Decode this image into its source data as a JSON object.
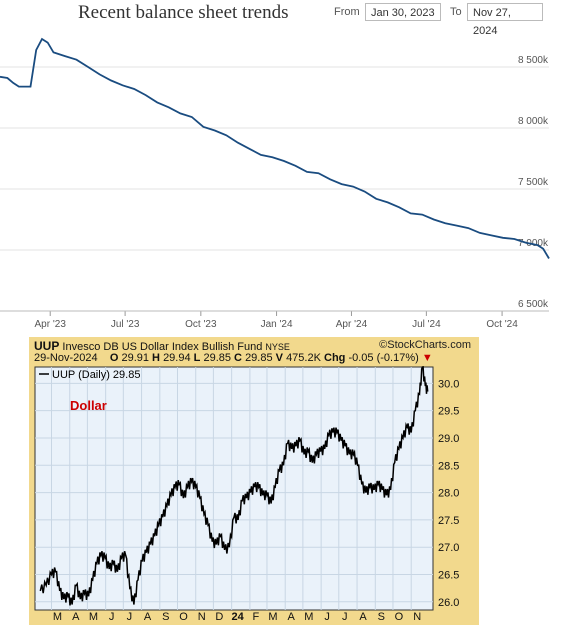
{
  "top_panel": {
    "title": "Recent balance sheet trends",
    "from_label": "From",
    "from_date": "Jan 30, 2023",
    "to_label": "To",
    "to_date": "Nov 27, 2024"
  },
  "bottom_panel": {
    "symbol": "UUP",
    "name": "Invesco DB US Dollar Index Bullish Fund",
    "exchange": "NYSE",
    "source": "©StockCharts.com",
    "date": "29-Nov-2024",
    "open_label": "O",
    "open": "29.91",
    "high_label": "H",
    "high": "29.94",
    "low_label": "L",
    "low": "29.85",
    "close_label": "C",
    "close": "29.85",
    "volume_label": "V",
    "volume": "475.2K",
    "chg_label": "Chg",
    "chg": "-0.05 (-0.17%)",
    "legend": "UUP (Daily) 29.85",
    "annotation": "Dollar"
  },
  "colors": {
    "balance_line": "#1a4c80",
    "uup_line": "#000000",
    "panel_frame": "#f2d98d",
    "plot_bg": "#eaf2fa",
    "annotation": "#cc0000"
  },
  "chart_data": [
    {
      "type": "line",
      "title": "Recent balance sheet trends",
      "xlabel": "",
      "ylabel": "",
      "x_ticks": [
        "Apr '23",
        "Jul '23",
        "Oct '23",
        "Jan '24",
        "Apr '24",
        "Jul '24",
        "Oct '24"
      ],
      "y_ticks": [
        "6 500k",
        "7 000k",
        "7 500k",
        "8 000k",
        "8 500k"
      ],
      "ylim": [
        6500000,
        8820000
      ],
      "xlim": [
        "2023-01-30",
        "2024-11-27"
      ],
      "grid": true,
      "series": [
        {
          "x": [
            "2023-01-30",
            "2023-02-08",
            "2023-02-15",
            "2023-02-22",
            "2023-03-01",
            "2023-03-08",
            "2023-03-15",
            "2023-03-22",
            "2023-03-29",
            "2023-04-05",
            "2023-04-19",
            "2023-05-03",
            "2023-05-17",
            "2023-05-31",
            "2023-06-14",
            "2023-06-28",
            "2023-07-12",
            "2023-07-26",
            "2023-08-09",
            "2023-08-23",
            "2023-09-06",
            "2023-09-20",
            "2023-10-04",
            "2023-10-18",
            "2023-11-01",
            "2023-11-15",
            "2023-11-29",
            "2023-12-13",
            "2023-12-27",
            "2024-01-10",
            "2024-01-24",
            "2024-02-07",
            "2024-02-21",
            "2024-03-06",
            "2024-03-20",
            "2024-04-03",
            "2024-04-17",
            "2024-05-01",
            "2024-05-15",
            "2024-05-29",
            "2024-06-12",
            "2024-06-26",
            "2024-07-10",
            "2024-07-24",
            "2024-08-07",
            "2024-08-21",
            "2024-09-04",
            "2024-09-18",
            "2024-10-02",
            "2024-10-16",
            "2024-10-30",
            "2024-11-13",
            "2024-11-20",
            "2024-11-27"
          ],
          "values": [
            8420000,
            8410000,
            8370000,
            8340000,
            8340000,
            8340000,
            8640000,
            8730000,
            8700000,
            8620000,
            8590000,
            8560000,
            8500000,
            8440000,
            8390000,
            8350000,
            8320000,
            8270000,
            8210000,
            8170000,
            8120000,
            8090000,
            8010000,
            7980000,
            7940000,
            7880000,
            7830000,
            7780000,
            7760000,
            7730000,
            7690000,
            7640000,
            7630000,
            7580000,
            7540000,
            7520000,
            7480000,
            7420000,
            7390000,
            7350000,
            7300000,
            7290000,
            7250000,
            7220000,
            7200000,
            7180000,
            7140000,
            7120000,
            7100000,
            7090000,
            7060000,
            7040000,
            7010000,
            6930000
          ]
        }
      ]
    },
    {
      "type": "line",
      "title": "Dollar",
      "xlabel": "",
      "ylabel": "",
      "x_ticks": [
        "M",
        "A",
        "M",
        "J",
        "J",
        "A",
        "S",
        "O",
        "N",
        "D",
        "24",
        "F",
        "M",
        "A",
        "M",
        "J",
        "J",
        "A",
        "S",
        "O",
        "N"
      ],
      "y_ticks": [
        "26.0",
        "26.5",
        "27.0",
        "27.5",
        "28.0",
        "28.5",
        "29.0",
        "29.5",
        "30.0"
      ],
      "ylim": [
        25.85,
        30.3
      ],
      "grid": true,
      "series": [
        {
          "name": "UUP (Daily)",
          "x": [
            "2023-02-10",
            "2023-02-20",
            "2023-03-01",
            "2023-03-08",
            "2023-03-15",
            "2023-03-22",
            "2023-03-29",
            "2023-04-05",
            "2023-04-12",
            "2023-04-19",
            "2023-04-26",
            "2023-05-03",
            "2023-05-10",
            "2023-05-17",
            "2023-05-24",
            "2023-05-31",
            "2023-06-07",
            "2023-06-14",
            "2023-06-21",
            "2023-06-28",
            "2023-07-05",
            "2023-07-12",
            "2023-07-19",
            "2023-07-26",
            "2023-08-02",
            "2023-08-09",
            "2023-08-16",
            "2023-08-23",
            "2023-08-30",
            "2023-09-06",
            "2023-09-13",
            "2023-09-20",
            "2023-09-27",
            "2023-10-04",
            "2023-10-11",
            "2023-10-18",
            "2023-10-25",
            "2023-11-01",
            "2023-11-08",
            "2023-11-15",
            "2023-11-22",
            "2023-11-29",
            "2023-12-06",
            "2023-12-13",
            "2023-12-20",
            "2023-12-28",
            "2024-01-05",
            "2024-01-12",
            "2024-01-19",
            "2024-01-26",
            "2024-02-02",
            "2024-02-09",
            "2024-02-16",
            "2024-02-23",
            "2024-03-01",
            "2024-03-08",
            "2024-03-15",
            "2024-03-22",
            "2024-03-29",
            "2024-04-05",
            "2024-04-12",
            "2024-04-19",
            "2024-04-26",
            "2024-05-03",
            "2024-05-10",
            "2024-05-17",
            "2024-05-24",
            "2024-05-31",
            "2024-06-07",
            "2024-06-14",
            "2024-06-21",
            "2024-06-28",
            "2024-07-05",
            "2024-07-12",
            "2024-07-19",
            "2024-07-26",
            "2024-08-02",
            "2024-08-09",
            "2024-08-16",
            "2024-08-23",
            "2024-08-30",
            "2024-09-06",
            "2024-09-13",
            "2024-09-20",
            "2024-09-27",
            "2024-10-04",
            "2024-10-11",
            "2024-10-18",
            "2024-10-25",
            "2024-11-01",
            "2024-11-08",
            "2024-11-15",
            "2024-11-20",
            "2024-11-25",
            "2024-11-29"
          ],
          "values": [
            26.2,
            26.3,
            26.5,
            26.55,
            26.2,
            26.05,
            26.1,
            25.95,
            26.3,
            26.05,
            26.15,
            26.1,
            26.4,
            26.7,
            26.85,
            26.8,
            26.6,
            26.7,
            26.55,
            26.8,
            26.85,
            26.25,
            25.95,
            26.4,
            26.75,
            26.9,
            27.05,
            27.2,
            27.4,
            27.55,
            27.75,
            27.95,
            28.1,
            28.15,
            27.9,
            28.1,
            28.2,
            28.1,
            27.9,
            27.6,
            27.4,
            27.1,
            27.05,
            27.2,
            26.95,
            27.0,
            27.55,
            27.5,
            27.85,
            27.9,
            28.0,
            28.1,
            28.1,
            27.95,
            27.95,
            27.8,
            28.1,
            28.4,
            28.5,
            28.9,
            28.8,
            28.85,
            28.95,
            28.7,
            28.75,
            28.55,
            28.7,
            28.75,
            28.8,
            29.05,
            29.1,
            29.1,
            28.95,
            28.85,
            28.7,
            28.7,
            28.5,
            28.15,
            28.0,
            28.1,
            28.05,
            28.15,
            28.05,
            27.95,
            28.05,
            28.55,
            28.8,
            29.0,
            29.2,
            29.1,
            29.5,
            29.8,
            30.3,
            29.95,
            29.85
          ]
        }
      ]
    }
  ]
}
